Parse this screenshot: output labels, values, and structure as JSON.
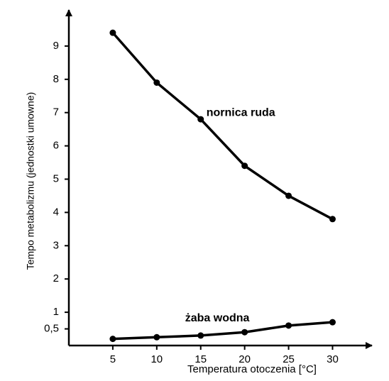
{
  "chart_data": {
    "type": "line",
    "x_label": "Temperatura otoczenia [°C]",
    "y_label": "Tempo metabolizmu (jednostki umowne)",
    "x": [
      5,
      10,
      15,
      20,
      25,
      30
    ],
    "series": [
      {
        "name": "nornica ruda",
        "color": "#000000",
        "values": [
          9.4,
          7.9,
          6.8,
          5.4,
          4.5,
          3.8
        ]
      },
      {
        "name": "żaba wodna",
        "color": "#000000",
        "values": [
          0.2,
          0.25,
          0.3,
          0.4,
          0.6,
          0.7
        ]
      }
    ],
    "xlim": [
      0,
      34
    ],
    "xticks": [
      5,
      10,
      15,
      20,
      25,
      30
    ],
    "ylim": [
      0,
      10
    ],
    "yticks": [
      {
        "value": 0.5,
        "label": "0,5"
      },
      1,
      2,
      3,
      4,
      5,
      6,
      7,
      8,
      9
    ]
  }
}
